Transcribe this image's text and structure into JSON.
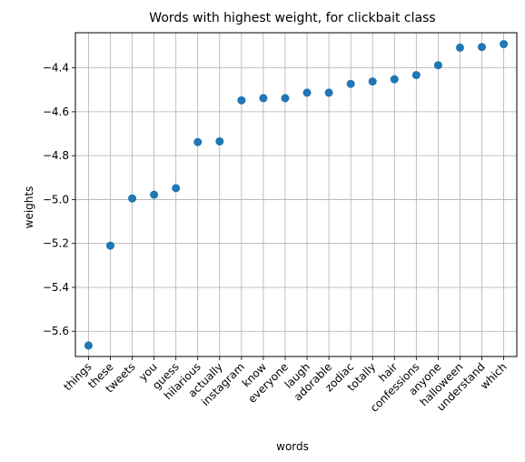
{
  "chart_data": {
    "type": "scatter",
    "title": "Words with highest weight, for clickbait class",
    "xlabel": "words",
    "ylabel": "weights",
    "categories": [
      "things",
      "these",
      "tweets",
      "you",
      "guess",
      "hilarious",
      "actually",
      "instagram",
      "know",
      "everyone",
      "laugh",
      "adorable",
      "zodiac",
      "totally",
      "hair",
      "confessions",
      "anyone",
      "halloween",
      "understand",
      "which"
    ],
    "values": [
      -5.665,
      -5.21,
      -4.995,
      -4.978,
      -4.948,
      -4.738,
      -4.735,
      -4.548,
      -4.538,
      -4.538,
      -4.513,
      -4.513,
      -4.473,
      -4.462,
      -4.452,
      -4.433,
      -4.388,
      -4.308,
      -4.305,
      -4.292
    ],
    "ylim": [
      -5.715,
      -4.24
    ],
    "yticks": [
      -5.6,
      -5.4,
      -5.2,
      -5.0,
      -4.8,
      -4.6,
      -4.4
    ],
    "ytick_labels": [
      "−5.6",
      "−5.4",
      "−5.2",
      "−5.0",
      "−4.8",
      "−4.6",
      "−4.4"
    ],
    "grid": true,
    "marker_color": "#1f77b4"
  }
}
